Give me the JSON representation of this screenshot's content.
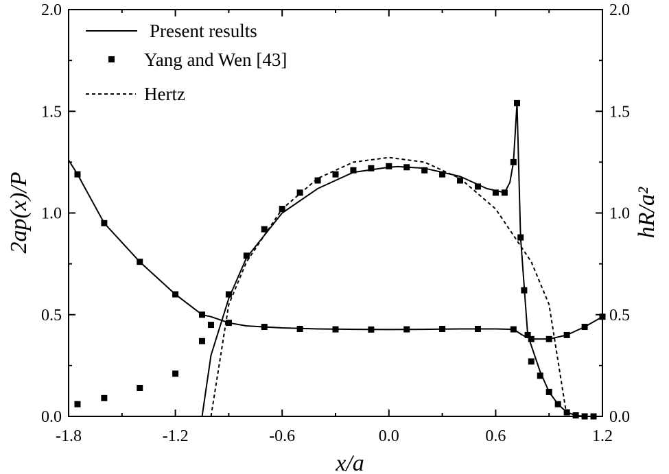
{
  "chart_data": {
    "type": "line",
    "title": "",
    "xlabel": "x/a",
    "ylabel_left": "2ap(x)/P",
    "ylabel_right": "hR/a²",
    "xlim": [
      -1.8,
      1.2
    ],
    "ylim_left": [
      0.0,
      2.0
    ],
    "ylim_right": [
      0.0,
      2.0
    ],
    "xticks": [
      "-1.8",
      "-1.2",
      "-0.6",
      "0.0",
      "0.6",
      "1.2"
    ],
    "yticks_left": [
      "0.0",
      "0.5",
      "1.0",
      "1.5",
      "2.0"
    ],
    "yticks_right": [
      "0.0",
      "0.5",
      "1.0",
      "1.5",
      "2.0"
    ],
    "grid": false,
    "legend": {
      "placement": "top-left",
      "entries": [
        "Present results",
        "Yang and Wen [43]",
        "Hertz"
      ]
    },
    "series": [
      {
        "name": "Present results",
        "style": "solid",
        "role": "pressure",
        "x": [
          -1.8,
          -1.75,
          -1.6,
          -1.4,
          -1.2,
          -1.05,
          -1.0,
          -0.9,
          -0.8,
          -0.6,
          -0.4,
          -0.2,
          0.0,
          0.05,
          0.2,
          0.4,
          0.55,
          0.65,
          0.68,
          0.7,
          0.72,
          0.74,
          0.78,
          0.85,
          0.9,
          0.95,
          1.0,
          1.05,
          1.1,
          1.15,
          1.2
        ],
        "y": [
          0.0,
          0.0,
          0.0,
          0.0,
          0.0,
          0.0,
          0.3,
          0.58,
          0.78,
          1.0,
          1.12,
          1.2,
          1.225,
          1.228,
          1.22,
          1.18,
          1.12,
          1.1,
          1.15,
          1.25,
          1.54,
          0.88,
          0.4,
          0.22,
          0.12,
          0.06,
          0.02,
          0.005,
          0.0,
          0.0,
          0.0
        ]
      },
      {
        "name": "Present results",
        "style": "solid",
        "role": "film-thickness",
        "x": [
          -1.8,
          -1.75,
          -1.6,
          -1.4,
          -1.2,
          -1.05,
          -1.0,
          -0.9,
          -0.8,
          -0.6,
          -0.4,
          -0.2,
          0.0,
          0.2,
          0.4,
          0.6,
          0.7,
          0.75,
          0.8,
          0.85,
          0.9,
          1.0,
          1.1,
          1.2
        ],
        "y": [
          1.26,
          1.19,
          0.95,
          0.76,
          0.6,
          0.5,
          0.49,
          0.46,
          0.445,
          0.435,
          0.43,
          0.428,
          0.427,
          0.428,
          0.43,
          0.43,
          0.428,
          0.4,
          0.38,
          0.38,
          0.38,
          0.4,
          0.44,
          0.49
        ]
      },
      {
        "name": "Yang and Wen [43]",
        "style": "markers",
        "x": [
          -1.75,
          -1.6,
          -1.4,
          -1.2,
          -1.05,
          -1.0,
          -0.9,
          -0.8,
          -0.7,
          -0.6,
          -0.5,
          -0.4,
          -0.3,
          -0.2,
          -0.1,
          0.0,
          0.1,
          0.2,
          0.3,
          0.4,
          0.5,
          0.6,
          0.65,
          0.7,
          0.72,
          0.74,
          0.76,
          0.78,
          0.8,
          0.85,
          0.9,
          0.95,
          1.0,
          1.05,
          1.1,
          1.15,
          -1.75,
          -1.6,
          -1.4,
          -1.2,
          -1.05,
          -0.9,
          -0.7,
          -0.5,
          -0.3,
          -0.1,
          0.1,
          0.3,
          0.5,
          0.7,
          0.8,
          0.9,
          1.0,
          1.1,
          1.2
        ],
        "y": [
          0.06,
          0.09,
          0.14,
          0.21,
          0.37,
          0.45,
          0.6,
          0.79,
          0.92,
          1.02,
          1.1,
          1.16,
          1.19,
          1.21,
          1.22,
          1.23,
          1.225,
          1.21,
          1.19,
          1.16,
          1.13,
          1.1,
          1.1,
          1.25,
          1.54,
          0.88,
          0.62,
          0.4,
          0.27,
          0.2,
          0.12,
          0.06,
          0.02,
          0.005,
          0.0,
          0.0,
          1.19,
          0.95,
          0.76,
          0.6,
          0.5,
          0.46,
          0.44,
          0.43,
          0.428,
          0.427,
          0.428,
          0.43,
          0.43,
          0.428,
          0.38,
          0.38,
          0.4,
          0.44,
          0.49
        ]
      },
      {
        "name": "Hertz",
        "style": "dashed",
        "x": [
          -1.0,
          -0.9,
          -0.8,
          -0.6,
          -0.4,
          -0.2,
          0.0,
          0.2,
          0.4,
          0.6,
          0.8,
          0.9,
          1.0
        ],
        "y": [
          0.0,
          0.55,
          0.76,
          1.02,
          1.17,
          1.25,
          1.273,
          1.25,
          1.17,
          1.02,
          0.76,
          0.55,
          0.0
        ]
      }
    ]
  }
}
